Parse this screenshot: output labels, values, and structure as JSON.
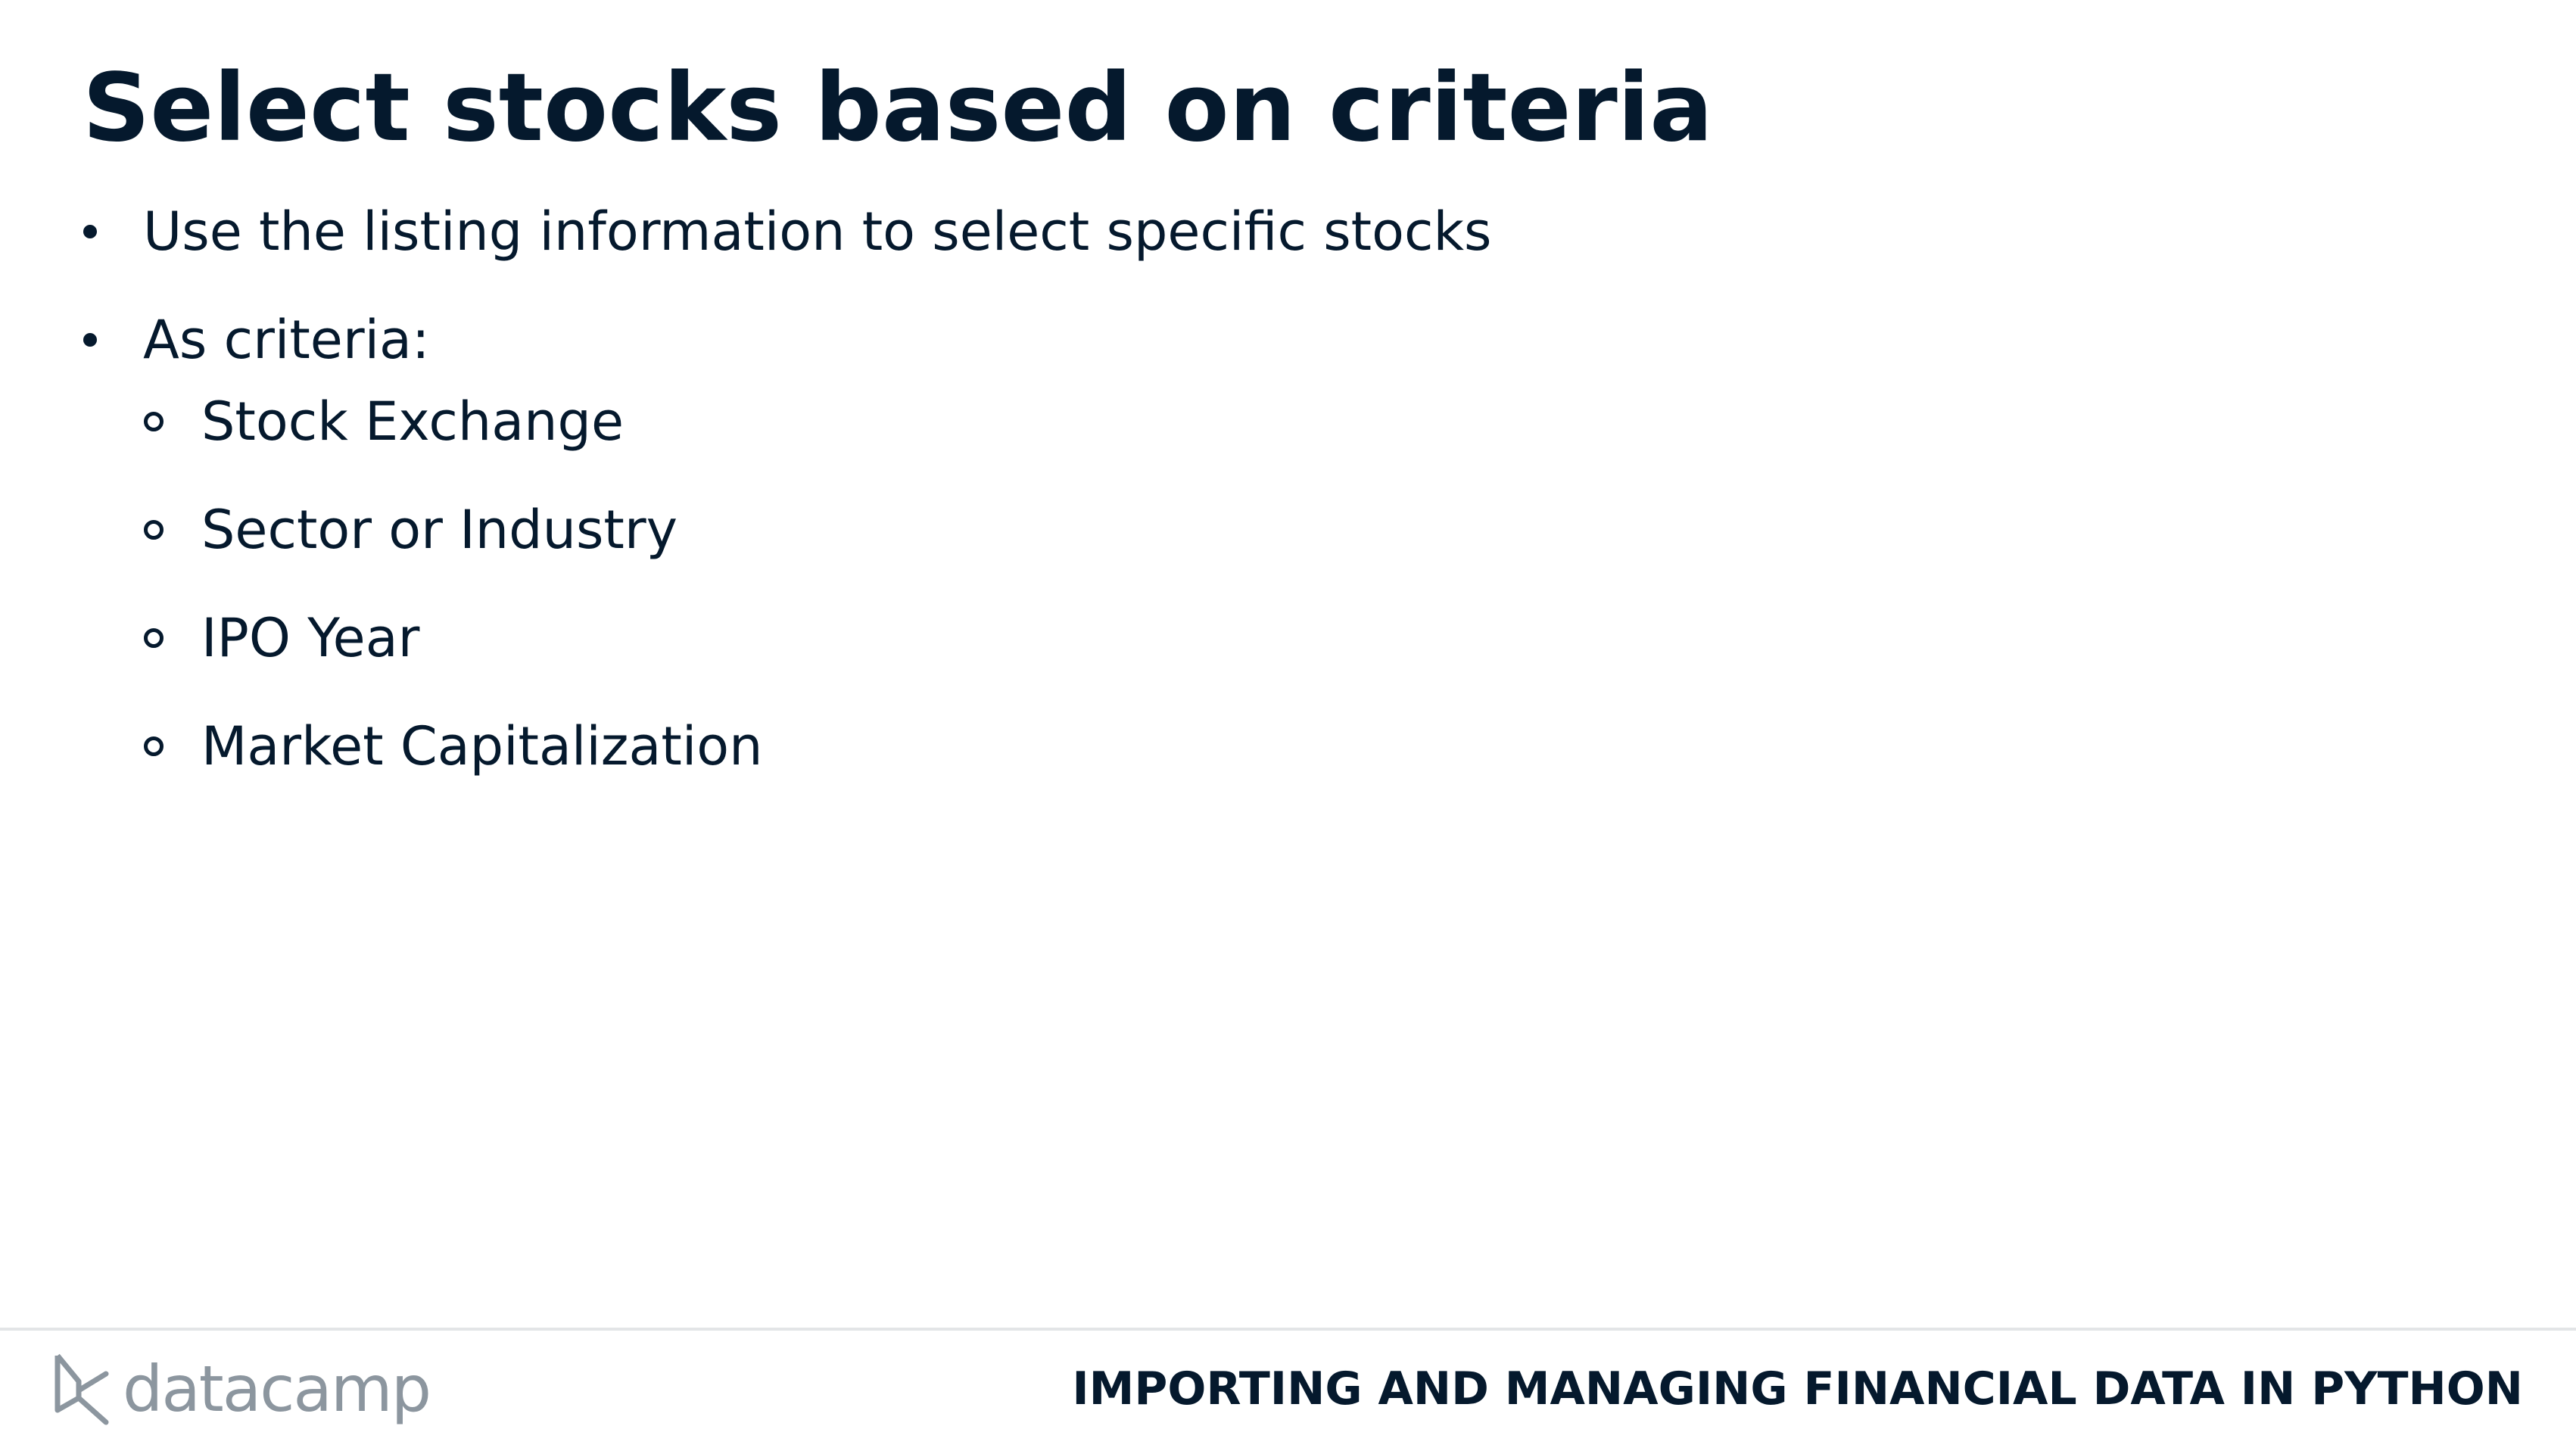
{
  "slide": {
    "title": "Select stocks based on criteria",
    "bullets": [
      {
        "text": "Use the listing information to select specific stocks"
      },
      {
        "text": "As criteria:"
      }
    ],
    "sub_bullets": [
      {
        "text": "Stock Exchange"
      },
      {
        "text": "Sector or Industry"
      },
      {
        "text": "IPO Year"
      },
      {
        "text": "Market Capitalization"
      }
    ]
  },
  "footer": {
    "logo_text": "datacamp",
    "course_title": "IMPORTING AND MANAGING FINANCIAL DATA IN PYTHON"
  }
}
